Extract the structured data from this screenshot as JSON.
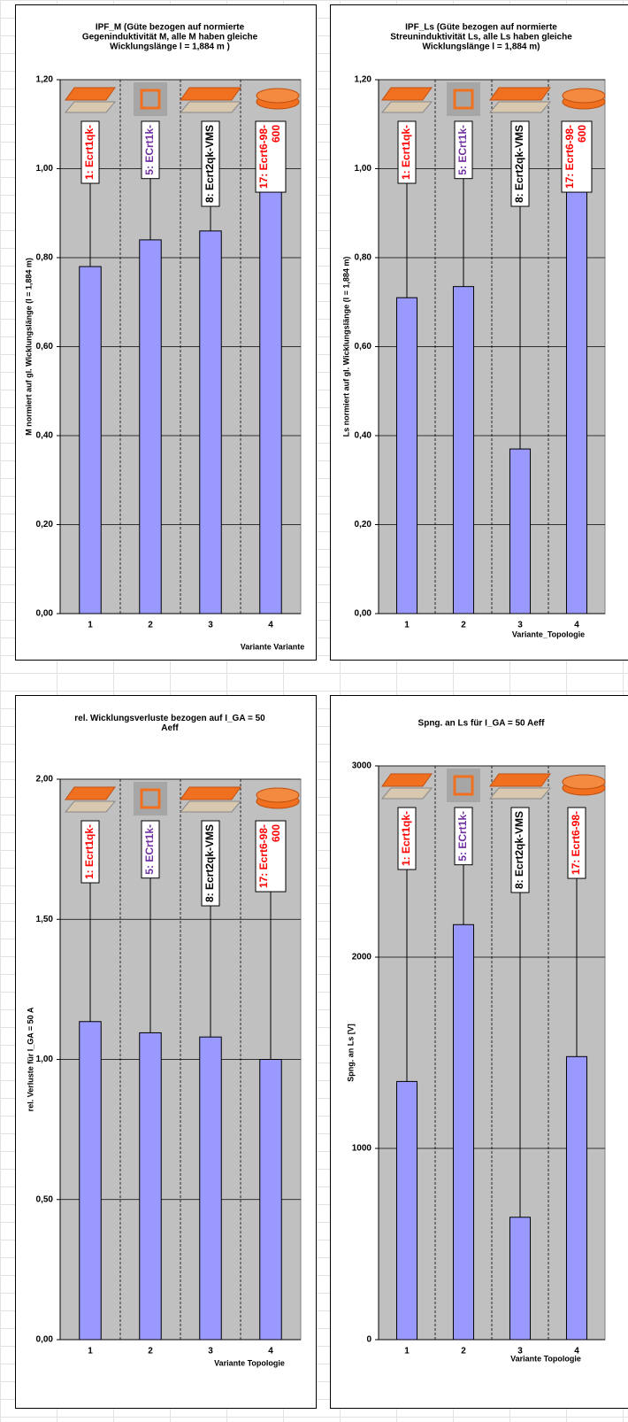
{
  "chart_data": [
    {
      "type": "bar",
      "title": [
        "IPF_M (Güte bezogen auf normierte",
        "Gegeninduktivität M, alle M haben gleiche",
        "Wicklungslänge l = 1,884 m )"
      ],
      "categories": [
        "1",
        "2",
        "3",
        "4"
      ],
      "values": [
        0.78,
        0.84,
        0.86,
        1.0
      ],
      "color": "#9999ff",
      "ylim": [
        0,
        1.2
      ],
      "yticks": [
        {
          "value": 0,
          "label": "0,00"
        },
        {
          "value": 0.2,
          "label": "0,20"
        },
        {
          "value": 0.4,
          "label": "0,40"
        },
        {
          "value": 0.6,
          "label": "0,60"
        },
        {
          "value": 0.8,
          "label": "0,80"
        },
        {
          "value": 1.0,
          "label": "1,00"
        },
        {
          "value": 1.2,
          "label": "1,20"
        }
      ],
      "ylabel": "M normiert auf gl. Wicklungslänge (l = 1,884 m)",
      "xlabel": "Variante Variante",
      "grid": true,
      "annotations": [
        {
          "lines": [
            "1: Ecrt1qk-"
          ],
          "color": "#ff0000"
        },
        {
          "lines": [
            "5: ECrt1k-"
          ],
          "color": "#7030a0"
        },
        {
          "lines": [
            "8: Ecrt2qk-VMS"
          ],
          "color": "#000000"
        },
        {
          "lines": [
            "17: Ecrt6-98-",
            "600"
          ],
          "color": "#ff0000"
        }
      ]
    },
    {
      "type": "bar",
      "title": [
        "IPF_Ls (Güte bezogen auf normierte",
        "Streuninduktivität Ls, alle Ls haben gleiche",
        "Wicklungslänge l = 1,884 m)"
      ],
      "categories": [
        "1",
        "2",
        "3",
        "4"
      ],
      "values": [
        0.71,
        0.735,
        0.37,
        1.0
      ],
      "color": "#9999ff",
      "ylim": [
        0,
        1.2
      ],
      "yticks": [
        {
          "value": 0,
          "label": "0,00"
        },
        {
          "value": 0.2,
          "label": "0,20"
        },
        {
          "value": 0.4,
          "label": "0,40"
        },
        {
          "value": 0.6,
          "label": "0,60"
        },
        {
          "value": 0.8,
          "label": "0,80"
        },
        {
          "value": 1.0,
          "label": "1,00"
        },
        {
          "value": 1.2,
          "label": "1,20"
        }
      ],
      "ylabel": "Ls normiert auf gl. Wicklungslänge (l = 1,884 m)",
      "xlabel": "Variante_Topologie",
      "grid": true,
      "annotations": [
        {
          "lines": [
            "1: Ecrt1qk-"
          ],
          "color": "#ff0000"
        },
        {
          "lines": [
            "5: ECrt1k-"
          ],
          "color": "#7030a0"
        },
        {
          "lines": [
            "8: Ecrt2qk-VMS"
          ],
          "color": "#000000"
        },
        {
          "lines": [
            "17: Ecrt6-98-",
            "600"
          ],
          "color": "#ff0000"
        }
      ]
    },
    {
      "type": "bar",
      "title": [
        "rel. Wicklungsverluste bezogen auf I_GA = 50",
        "Aeff"
      ],
      "categories": [
        "1",
        "2",
        "3",
        "4"
      ],
      "values": [
        1.135,
        1.095,
        1.08,
        1.0
      ],
      "color": "#9999ff",
      "ylim": [
        0,
        2
      ],
      "yticks": [
        {
          "value": 0,
          "label": "0,00"
        },
        {
          "value": 0.5,
          "label": "0,50"
        },
        {
          "value": 1.0,
          "label": "1,00"
        },
        {
          "value": 1.5,
          "label": "1,50"
        },
        {
          "value": 2.0,
          "label": "2,00"
        }
      ],
      "ylabel": "rel. Verluste für I_GA = 50 A",
      "xlabel": "Variante Topologie",
      "grid": true,
      "annotations": [
        {
          "lines": [
            "1: Ecrt1qk-"
          ],
          "color": "#ff0000"
        },
        {
          "lines": [
            "5: ECrt1k-"
          ],
          "color": "#7030a0"
        },
        {
          "lines": [
            "8: Ecrt2qk-VMS"
          ],
          "color": "#000000"
        },
        {
          "lines": [
            "17: Ecrt6-98-",
            "600"
          ],
          "color": "#ff0000"
        }
      ]
    },
    {
      "type": "bar",
      "title": [
        "Spng. an Ls für I_GA = 50 Aeff"
      ],
      "categories": [
        "1",
        "2",
        "3",
        "4"
      ],
      "values": [
        1350,
        2170,
        640,
        1480
      ],
      "color": "#9999ff",
      "ylim": [
        0,
        3000
      ],
      "yticks": [
        0,
        1000,
        2000,
        3000
      ],
      "ylabel": "Spng. an Ls [V]",
      "xlabel": "Variante Topologie",
      "grid": true,
      "annotations": [
        {
          "lines": [
            "1: Ecrt1qk-"
          ],
          "color": "#ff0000"
        },
        {
          "lines": [
            "5: ECrt1k-"
          ],
          "color": "#7030a0"
        },
        {
          "lines": [
            "8: Ecrt2qk-VMS"
          ],
          "color": "#000000"
        },
        {
          "lines": [
            "17: Ecrt6-98-"
          ],
          "color": "#ff0000"
        }
      ]
    }
  ]
}
